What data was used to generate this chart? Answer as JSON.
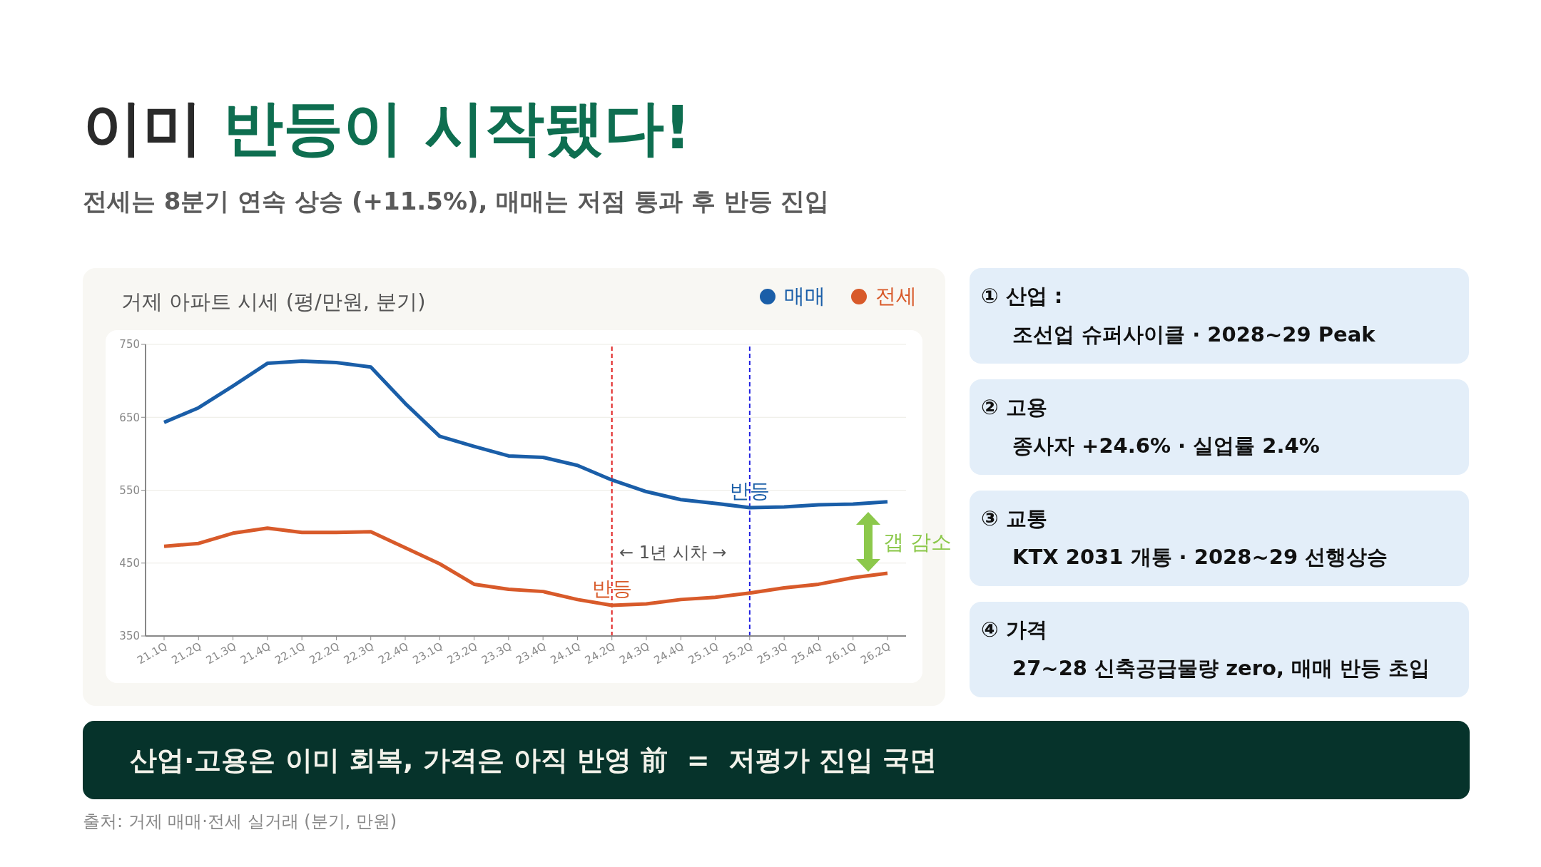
{
  "chart_data": {
    "type": "line",
    "title": "이미 반등이 시작됐다!",
    "subtitle": "전세는 8분기 연속 상승 (+11.5%), 매매는 저점 통과 후 반등 진입",
    "ylabel": "거제 아파트 시세 (평/만원, 분기)",
    "categories": [
      "21.1Q",
      "21.2Q",
      "21.3Q",
      "21.4Q",
      "22.1Q",
      "22.2Q",
      "22.3Q",
      "22.4Q",
      "23.1Q",
      "23.2Q",
      "23.3Q",
      "23.4Q",
      "24.1Q",
      "24.2Q",
      "24.3Q",
      "24.4Q",
      "25.1Q",
      "25.2Q",
      "25.3Q",
      "25.4Q",
      "26.1Q",
      "26.2Q"
    ],
    "series": [
      {
        "name": "매매",
        "color": "#1a5ea8",
        "values": [
          643,
          663,
          693,
          724,
          727,
          725,
          719,
          669,
          624,
          610,
          597,
          595,
          584,
          564,
          548,
          537,
          532,
          526,
          527,
          530,
          531,
          534
        ]
      },
      {
        "name": "전세",
        "color": "#d85a2a",
        "values": [
          473,
          477,
          491,
          498,
          492,
          492,
          493,
          471,
          449,
          421,
          414,
          411,
          400,
          392,
          394,
          400,
          403,
          409,
          416,
          421,
          430,
          436
        ]
      }
    ],
    "ylim": [
      350,
      750
    ],
    "yticks": [
      350,
      450,
      550,
      650,
      750
    ],
    "grid": "y",
    "legend": "top right",
    "line_style": "solid",
    "ref_lines": [
      {
        "axis": "x",
        "value": "24.2Q",
        "color": "#e02020",
        "line_style": "dashed"
      },
      {
        "axis": "x",
        "value": "25.2Q",
        "color": "#2020e0",
        "line_style": "dashed"
      }
    ],
    "annotations": [
      "← 1년 시차 →",
      "갭 감소",
      {
        "text": "반등",
        "x": "25.2Q",
        "y": 526
      },
      {
        "text": "반등",
        "x": "24.2Q",
        "y": 392
      },
      "① 산업 :",
      "조선업 슈퍼사이클 · 2028~29 Peak",
      "② 고용",
      "종사자 +24.6% · 실업률 2.4%",
      "③ 교통",
      "KTX 2031 개통 · 2028~29 선행상승",
      "④ 가격",
      "27~28 신축공급물량 zero, 매매 반등 초입",
      "산업·고용은 이미 회복, 가격은 아직 반영 前  =  저평가 진입 국면",
      "출처: 거제 매매·전세 실거래 (분기, 만원)"
    ]
  }
}
